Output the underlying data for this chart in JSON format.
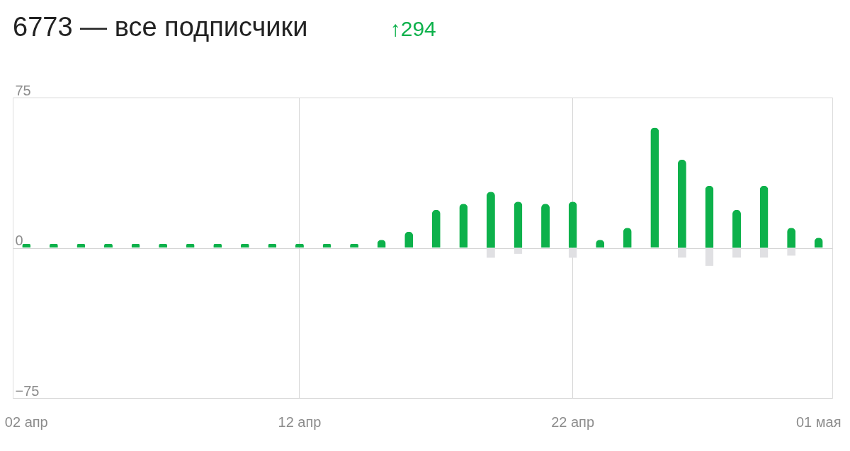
{
  "chart_data": {
    "type": "bar",
    "title": "6773 — все подписчики",
    "annotations": [
      "↑294"
    ],
    "categories": [
      "02 апр",
      null,
      null,
      null,
      null,
      null,
      null,
      null,
      null,
      null,
      "12 апр",
      null,
      null,
      null,
      null,
      null,
      null,
      null,
      null,
      null,
      "22 апр",
      null,
      null,
      null,
      null,
      null,
      null,
      null,
      null,
      "01 мая"
    ],
    "series": [
      {
        "color": "#e0e0e3",
        "values": [
          null,
          null,
          null,
          null,
          null,
          null,
          null,
          null,
          null,
          null,
          null,
          null,
          null,
          null,
          null,
          null,
          null,
          -5,
          -3,
          null,
          -5,
          null,
          null,
          null,
          -5,
          -9,
          -5,
          -5,
          -4,
          null
        ]
      },
      {
        "color": "#0db14b",
        "values": [
          2,
          2,
          2,
          2,
          2,
          2,
          2,
          2,
          2,
          2,
          2,
          2,
          2,
          4,
          8,
          19,
          22,
          28,
          23,
          22,
          23,
          4,
          10,
          60,
          44,
          31,
          19,
          31,
          10,
          5
        ]
      }
    ],
    "ylim": [
      -75,
      75
    ],
    "yticks": [
      -75,
      0,
      75
    ],
    "grid": true
  }
}
